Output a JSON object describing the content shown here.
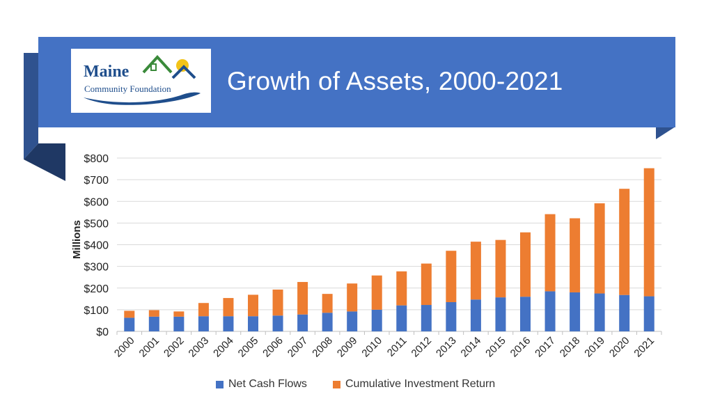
{
  "slide": {
    "title": "Growth of Assets, 2000-2021"
  },
  "logo": {
    "name_main": "Maine",
    "name_sub": "Community Foundation"
  },
  "colors": {
    "banner": "#4472c4",
    "banner_dark": "#2f528f",
    "net_cash_flows": "#4472c4",
    "cumulative_investment_return": "#ed7d31",
    "logo_blue": "#1f4e8c",
    "logo_green": "#3a8a3a",
    "logo_yellow": "#f2c318"
  },
  "chart_data": {
    "type": "bar",
    "stacked": true,
    "ylabel": "Millions",
    "xlabel": "",
    "ylim": [
      0,
      800
    ],
    "yticks": [
      0,
      100,
      200,
      300,
      400,
      500,
      600,
      700,
      800
    ],
    "ytick_labels": [
      "$0",
      "$100",
      "$200",
      "$300",
      "$400",
      "$500",
      "$600",
      "$700",
      "$800"
    ],
    "grid": true,
    "legend_position": "bottom",
    "categories": [
      "2000",
      "2001",
      "2002",
      "2003",
      "2004",
      "2005",
      "2006",
      "2007",
      "2008",
      "2009",
      "2010",
      "2011",
      "2012",
      "2013",
      "2014",
      "2015",
      "2016",
      "2017",
      "2018",
      "2019",
      "2020",
      "2021"
    ],
    "series": [
      {
        "name": "Net Cash Flows",
        "values": [
          63,
          68,
          68,
          70,
          70,
          70,
          73,
          78,
          86,
          92,
          100,
          120,
          122,
          135,
          147,
          157,
          160,
          185,
          180,
          175,
          168,
          162
        ]
      },
      {
        "name": "Cumulative Investment Return",
        "values": [
          32,
          30,
          24,
          61,
          84,
          99,
          120,
          150,
          87,
          129,
          158,
          157,
          191,
          237,
          267,
          265,
          297,
          356,
          342,
          416,
          490,
          591
        ]
      }
    ]
  }
}
